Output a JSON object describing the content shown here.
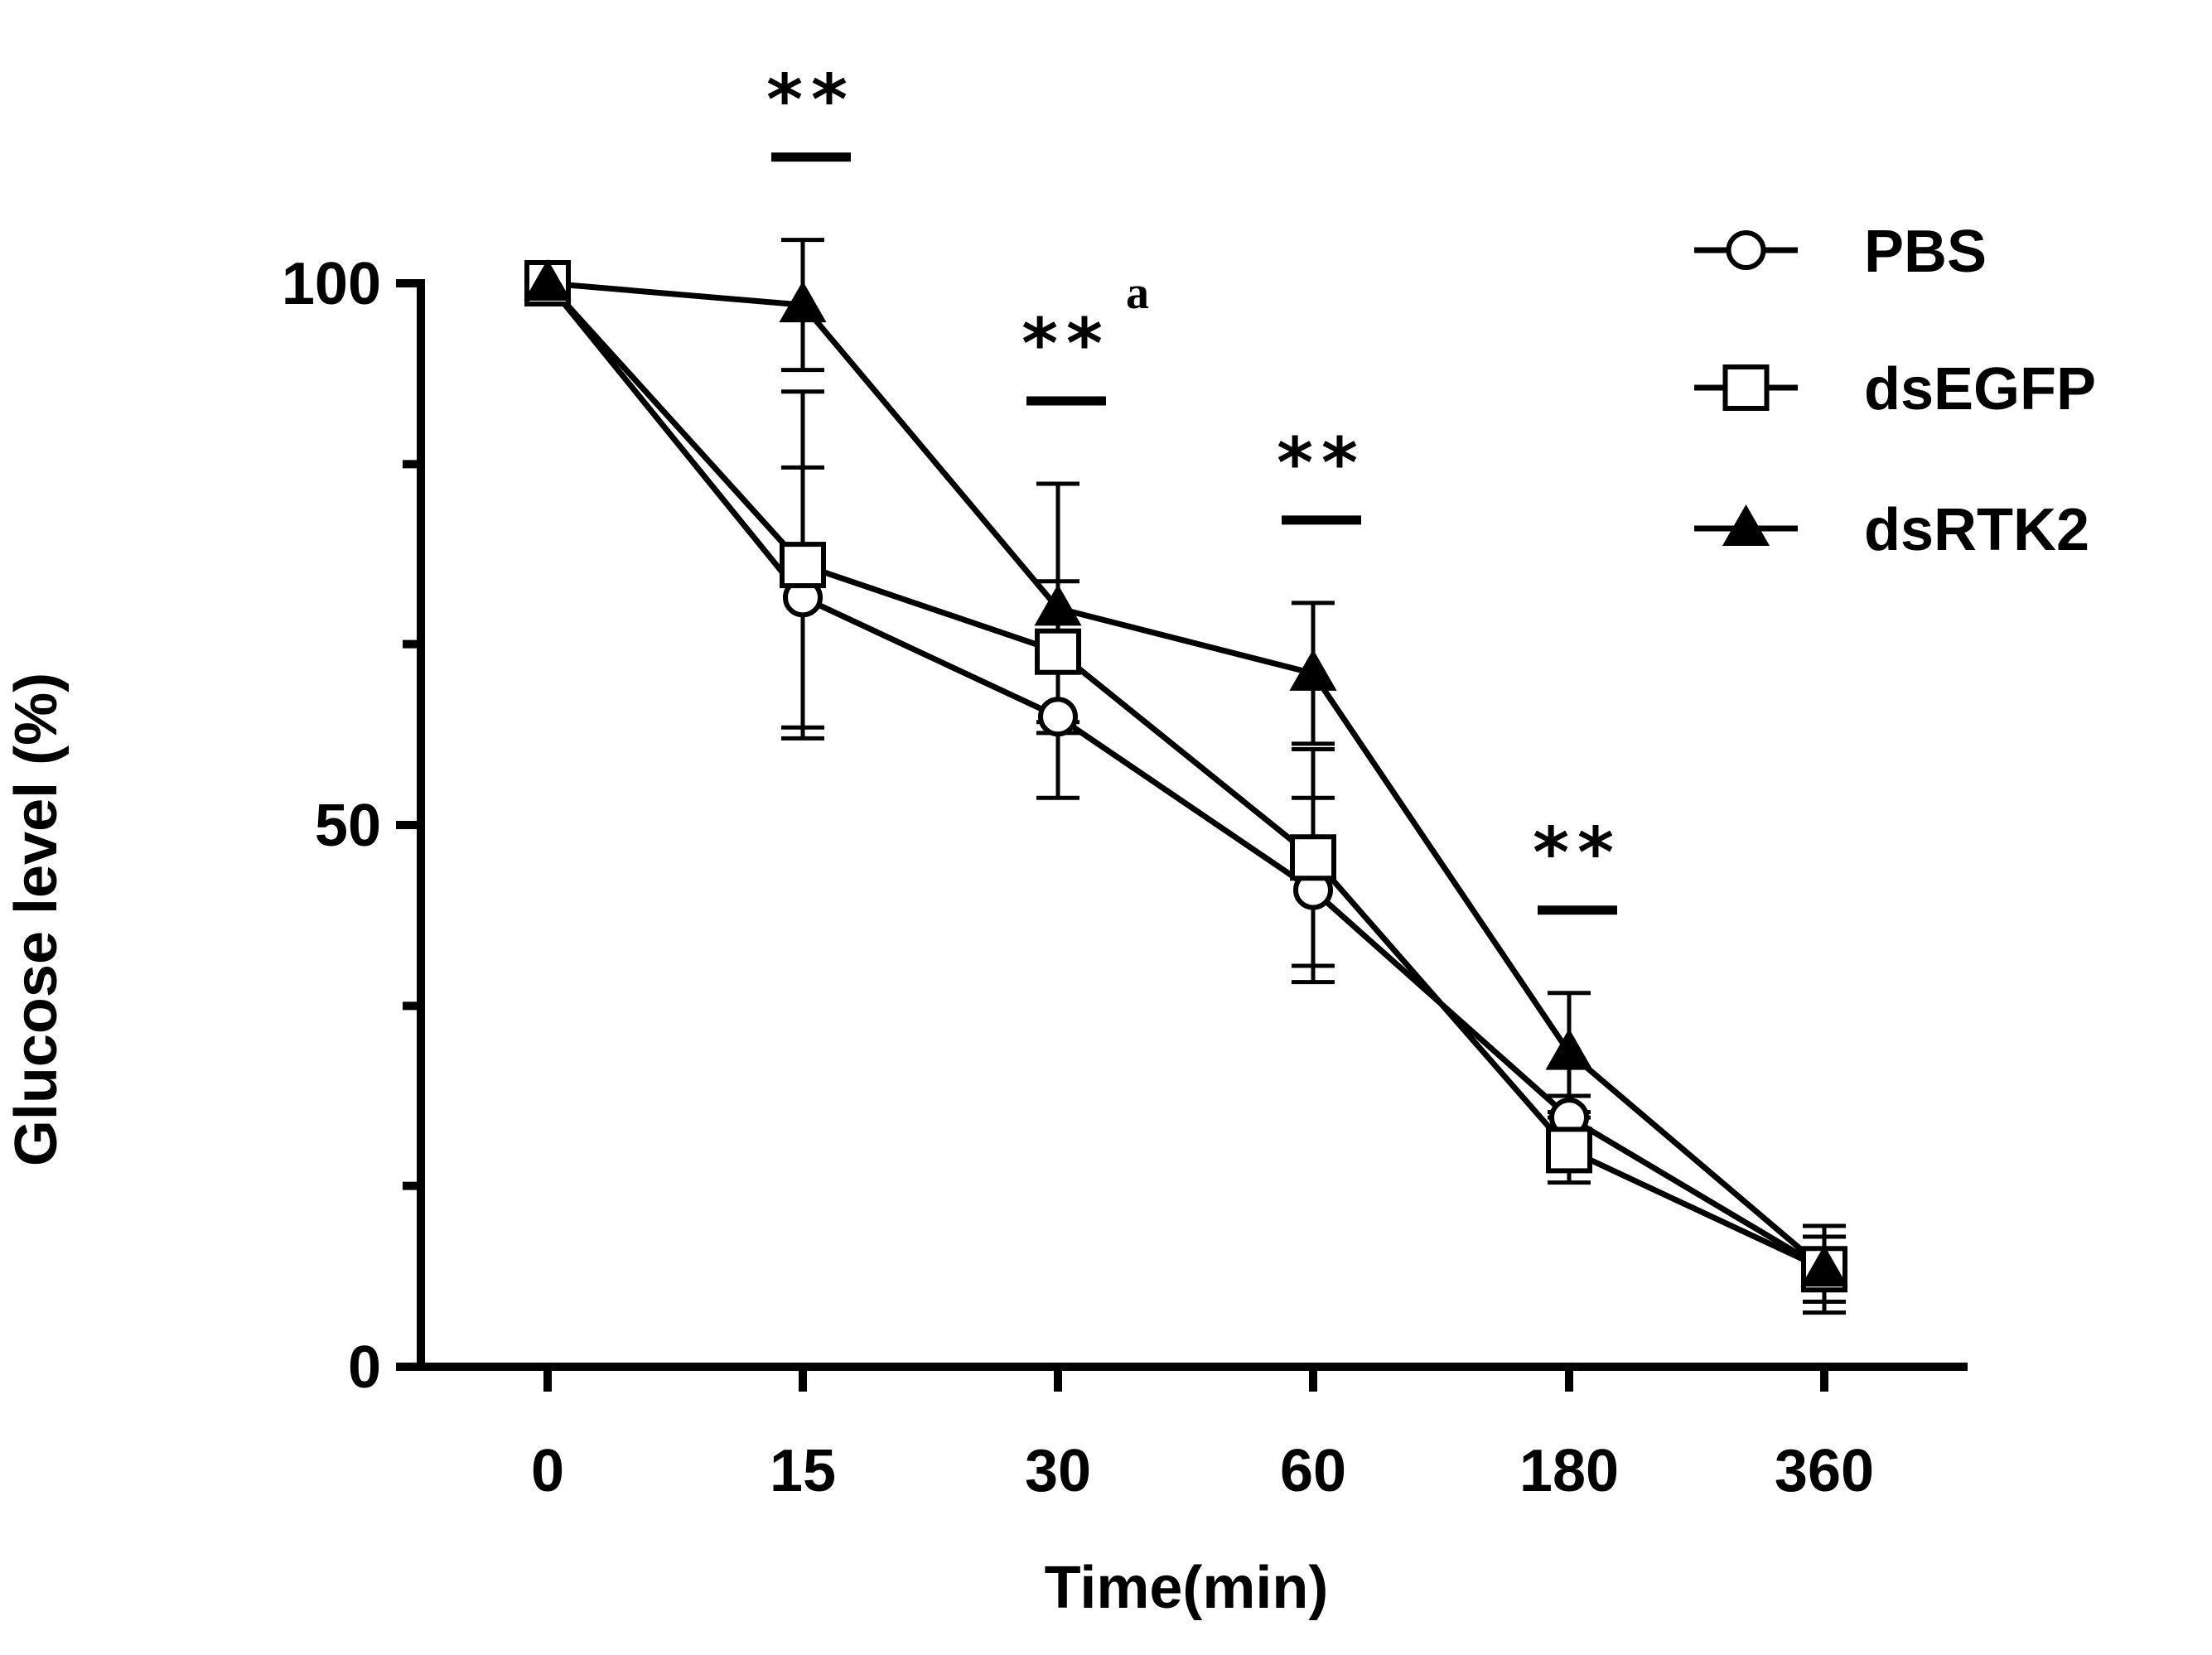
{
  "chart_data": {
    "type": "line",
    "title": "",
    "xlabel": "Time(min)",
    "ylabel": "Glucose level (%)",
    "categories": [
      "0",
      "15",
      "30",
      "60",
      "180",
      "360"
    ],
    "ylim": [
      0,
      100
    ],
    "yticks": [
      0,
      50,
      100
    ],
    "yminor_ticks": [
      16.7,
      33.3,
      66.7,
      83.3
    ],
    "series": [
      {
        "name": "PBS",
        "marker": "open-circle",
        "values": [
          100,
          71,
          60,
          44,
          23,
          9
        ],
        "errors": [
          0,
          12,
          7.5,
          8.5,
          2,
          3
        ]
      },
      {
        "name": "dsEGFP",
        "marker": "open-square",
        "values": [
          100,
          74,
          66,
          47,
          20,
          9
        ],
        "errors": [
          0,
          16,
          6.5,
          10,
          3,
          4
        ]
      },
      {
        "name": "dsRTK2",
        "marker": "filled-triangle",
        "values": [
          100,
          98,
          70,
          64,
          29,
          9
        ],
        "errors": [
          0,
          6,
          11.5,
          6.5,
          5.5,
          3
        ]
      }
    ],
    "annotations": [
      {
        "category": "15",
        "text": "**",
        "superscript": ""
      },
      {
        "category": "30",
        "text": "**",
        "superscript": "a"
      },
      {
        "category": "60",
        "text": "**",
        "superscript": ""
      },
      {
        "category": "180",
        "text": "**",
        "superscript": ""
      }
    ],
    "legend_position": "top-right",
    "grid": false
  }
}
